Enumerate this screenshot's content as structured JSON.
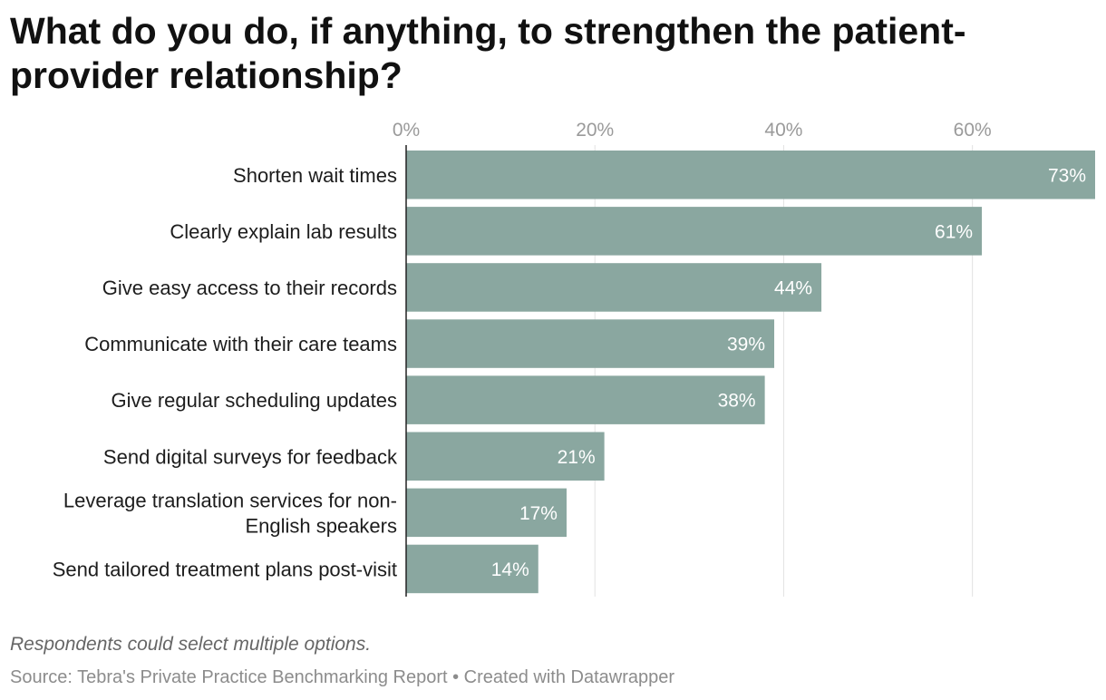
{
  "chart_data": {
    "type": "bar",
    "orientation": "horizontal",
    "title": "What do you do, if anything, to strengthen the patient-provider relationship?",
    "categories": [
      "Shorten wait times",
      "Clearly explain lab results",
      "Give easy access to their records",
      "Communicate with their care teams",
      "Give regular scheduling updates",
      "Send digital surveys for feedback",
      "Leverage translation services for non-English speakers",
      "Send tailored treatment plans post-visit"
    ],
    "category_lines": [
      [
        "Shorten wait times"
      ],
      [
        "Clearly explain lab results"
      ],
      [
        "Give easy access to their records"
      ],
      [
        "Communicate with their care teams"
      ],
      [
        "Give regular scheduling updates"
      ],
      [
        "Send digital surveys for feedback"
      ],
      [
        "Leverage translation services for non-",
        "English speakers"
      ],
      [
        "Send tailored treatment plans post-visit"
      ]
    ],
    "values": [
      73,
      61,
      44,
      39,
      38,
      21,
      17,
      14
    ],
    "value_labels": [
      "73%",
      "61%",
      "44%",
      "39%",
      "38%",
      "21%",
      "17%",
      "14%"
    ],
    "xticks": [
      0,
      20,
      40,
      60
    ],
    "xtick_labels": [
      "0%",
      "20%",
      "40%",
      "60%"
    ],
    "xlim": [
      0,
      73
    ],
    "grid": true,
    "bar_color": "#8aa7a0",
    "note": "Respondents could select multiple options.",
    "source": "Source: Tebra's Private Practice Benchmarking Report • Created with Datawrapper"
  }
}
